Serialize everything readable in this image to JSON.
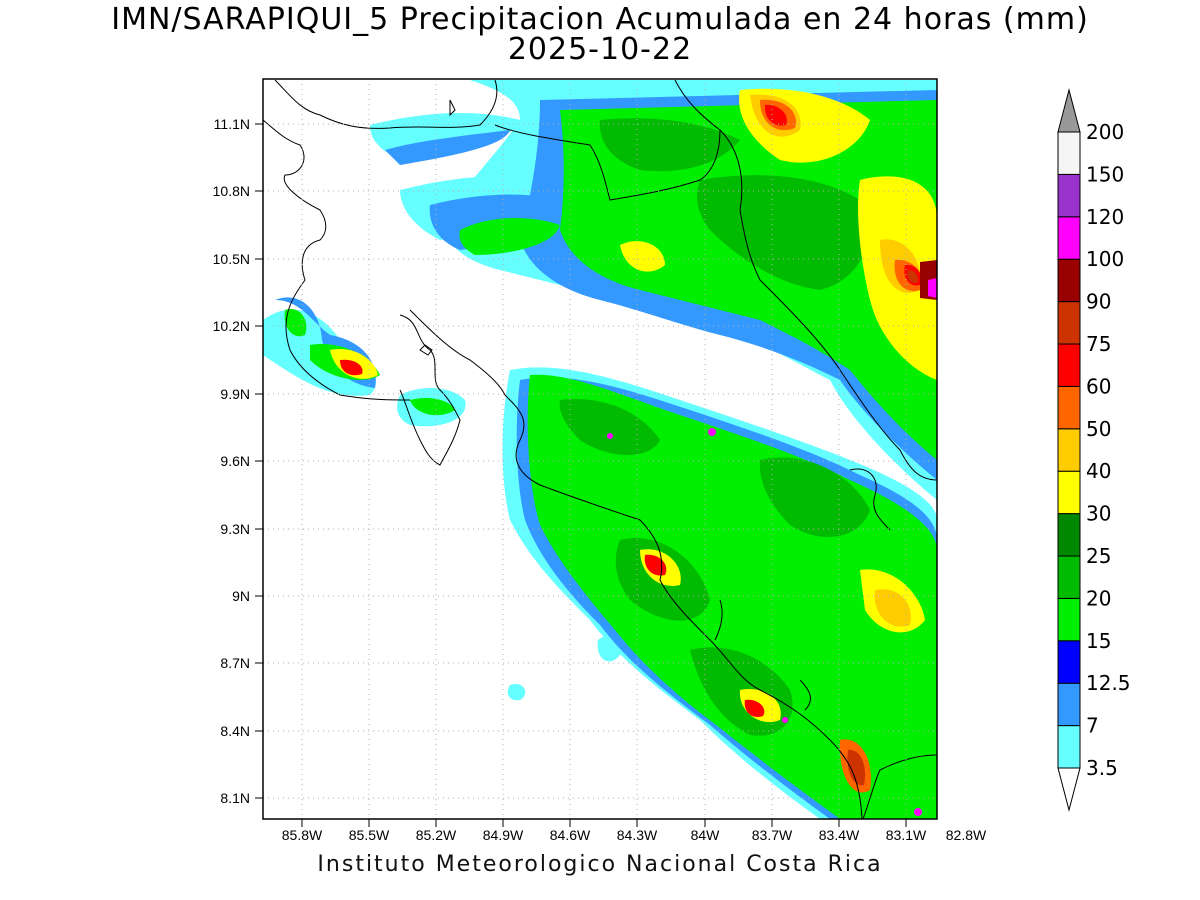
{
  "title": {
    "line1": "IMN/SARAPIQUI_5 Precipitacion Acumulada en 24 horas (mm)",
    "line2": "2025-10-22"
  },
  "footer": "Instituto Meteorologico Nacional Costa Rica",
  "axes": {
    "lat_labels": [
      "11.1N",
      "10.8N",
      "10.5N",
      "10.2N",
      "9.9N",
      "9.6N",
      "9.3N",
      "9N",
      "8.7N",
      "8.4N",
      "8.1N"
    ],
    "lon_labels": [
      "85.8W",
      "85.5W",
      "85.2W",
      "84.9W",
      "84.6W",
      "84.3W",
      "84W",
      "83.7W",
      "83.4W",
      "83.1W",
      "82.8W"
    ]
  },
  "colorbar": {
    "levels": [
      "3.5",
      "7",
      "12.5",
      "15",
      "20",
      "25",
      "30",
      "40",
      "50",
      "60",
      "75",
      "90",
      "100",
      "120",
      "150",
      "200"
    ],
    "colors": [
      "#ffffff",
      "#66ffff",
      "#3399ff",
      "#0000ff",
      "#00ee00",
      "#00bb00",
      "#008800",
      "#ffff00",
      "#ffcc00",
      "#ff6600",
      "#ff0000",
      "#cc3300",
      "#990000",
      "#ff00ff",
      "#9933cc",
      "#f5f5f5",
      "#999999"
    ]
  }
}
